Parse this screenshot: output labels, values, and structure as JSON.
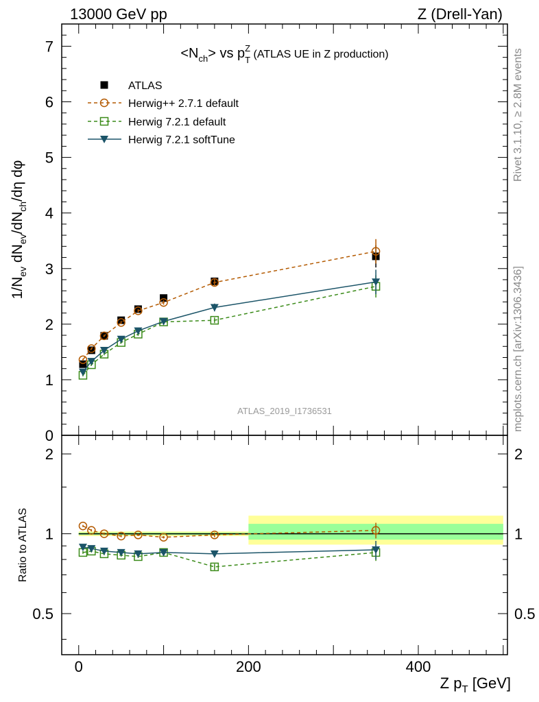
{
  "header": {
    "left": "13000 GeV pp",
    "right": "Z (Drell-Yan)"
  },
  "side_notes": {
    "rivet": "Rivet 3.1.10, ≥ 2.8M events",
    "mcplots": "mcplots.cern.ch [arXiv:1306.3436]"
  },
  "colors": {
    "atlas": "#000000",
    "herwigpp": "#b35900",
    "herwig721": "#3a8a18",
    "softtune": "#1b5468",
    "band_outer": "#ffff99",
    "band_inner": "#99ff99"
  },
  "chart_data": [
    {
      "type": "scatter",
      "title": "<Nch> vs pTZ (ATLAS UE in Z production)",
      "title_parts": {
        "main": "<N",
        "sub1": "ch",
        "mid": "> vs p",
        "sup": "Z",
        "sub2": "T",
        "rest": " (ATLAS UE in Z production)"
      },
      "watermark": "ATLAS_2019_I1736531",
      "ylabel": "1/Nev dNev/dNch/dη dφ",
      "xlim": [
        -20,
        505
      ],
      "ylim": [
        0,
        7.4
      ],
      "yticks": [
        0,
        1,
        2,
        3,
        4,
        5,
        6,
        7
      ],
      "legend_position": "top-left",
      "series": [
        {
          "name": "ATLAS",
          "marker": "filled-square",
          "x": [
            5,
            15,
            30,
            50,
            70,
            100,
            160,
            350
          ],
          "y": [
            1.28,
            1.53,
            1.79,
            2.07,
            2.27,
            2.47,
            2.77,
            3.22
          ],
          "err": [
            0.03,
            0.03,
            0.03,
            0.03,
            0.04,
            0.05,
            0.05,
            0.2
          ]
        },
        {
          "name": "Herwig++ 2.7.1 default",
          "marker": "open-circle",
          "line": "dashed",
          "x": [
            5,
            15,
            30,
            50,
            70,
            100,
            160,
            350
          ],
          "y": [
            1.36,
            1.56,
            1.79,
            2.03,
            2.24,
            2.39,
            2.75,
            3.31
          ],
          "err": [
            0.02,
            0.02,
            0.02,
            0.03,
            0.03,
            0.04,
            0.06,
            0.22
          ]
        },
        {
          "name": "Herwig 7.2.1 default",
          "marker": "open-square",
          "line": "dashed",
          "x": [
            5,
            15,
            30,
            50,
            70,
            100,
            160,
            350
          ],
          "y": [
            1.08,
            1.27,
            1.46,
            1.67,
            1.82,
            2.04,
            2.07,
            2.68
          ],
          "err": [
            0.02,
            0.02,
            0.02,
            0.02,
            0.03,
            0.03,
            0.05,
            0.2
          ]
        },
        {
          "name": "Herwig 7.2.1 softTune",
          "marker": "filled-triangle-down",
          "line": "solid",
          "x": [
            5,
            15,
            30,
            50,
            70,
            100,
            160,
            350
          ],
          "y": [
            1.14,
            1.33,
            1.53,
            1.73,
            1.88,
            2.05,
            2.3,
            2.76
          ],
          "err": [
            0.02,
            0.02,
            0.02,
            0.03,
            0.03,
            0.04,
            0.07,
            0.22
          ]
        }
      ]
    },
    {
      "type": "scatter",
      "ylabel": "Ratio to ATLAS",
      "xlabel": "Z pT [GeV]",
      "xlabel_parts": {
        "main": "Z p",
        "sub": "T",
        "rest": " [GeV]"
      },
      "xlim": [
        -20,
        505
      ],
      "ylim": [
        0.35,
        2.35
      ],
      "y_scale": "log",
      "yticks": [
        0.5,
        1,
        2
      ],
      "yticklabels": [
        "0.5",
        "1",
        "2"
      ],
      "xticks": [
        0,
        200,
        400
      ],
      "xticklabels": [
        "0",
        "200",
        "400"
      ],
      "reference_line": 1,
      "bands": [
        {
          "x": [
            0,
            200
          ],
          "outer": [
            0.98,
            1.02
          ],
          "inner": [
            0.99,
            1.01
          ]
        },
        {
          "x": [
            200,
            500
          ],
          "outer": [
            0.91,
            1.17
          ],
          "inner": [
            0.95,
            1.09
          ]
        }
      ],
      "series": [
        {
          "name": "Herwig++ 2.7.1 default",
          "x": [
            5,
            15,
            30,
            50,
            70,
            100,
            160,
            350
          ],
          "y": [
            1.07,
            1.03,
            1.0,
            0.98,
            0.99,
            0.97,
            0.99,
            1.03
          ],
          "err": [
            0.01,
            0.01,
            0.01,
            0.01,
            0.01,
            0.01,
            0.02,
            0.07
          ]
        },
        {
          "name": "Herwig 7.2.1 default",
          "x": [
            5,
            15,
            30,
            50,
            70,
            100,
            160,
            350
          ],
          "y": [
            0.85,
            0.86,
            0.84,
            0.83,
            0.82,
            0.85,
            0.75,
            0.85
          ],
          "err": [
            0.01,
            0.01,
            0.01,
            0.01,
            0.01,
            0.01,
            0.02,
            0.06
          ]
        },
        {
          "name": "Herwig 7.2.1 softTune",
          "x": [
            5,
            15,
            30,
            50,
            70,
            100,
            160,
            350
          ],
          "y": [
            0.89,
            0.88,
            0.86,
            0.85,
            0.84,
            0.85,
            0.84,
            0.87
          ],
          "err": [
            0.01,
            0.01,
            0.01,
            0.01,
            0.01,
            0.01,
            0.02,
            0.07
          ]
        }
      ]
    }
  ]
}
